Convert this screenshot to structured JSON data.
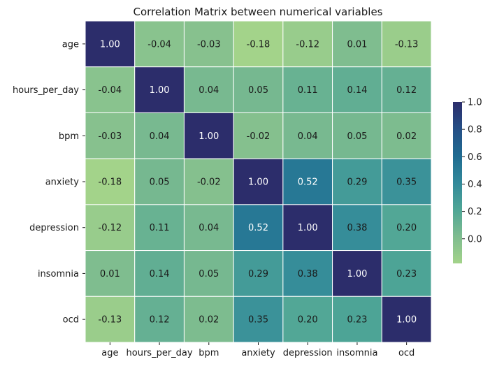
{
  "chart_data": {
    "type": "heatmap",
    "title": "Correlation Matrix between numerical variables",
    "xlabel": "",
    "ylabel": "",
    "row_labels": [
      "age",
      "hours_per_day",
      "bpm",
      "anxiety",
      "depression",
      "insomnia",
      "ocd"
    ],
    "column_labels": [
      "age",
      "hours_per_day",
      "bpm",
      "anxiety",
      "depression",
      "insomnia",
      "ocd"
    ],
    "values": [
      [
        1.0,
        -0.04,
        -0.03,
        -0.18,
        -0.12,
        0.01,
        -0.13
      ],
      [
        -0.04,
        1.0,
        0.04,
        0.05,
        0.11,
        0.14,
        0.12
      ],
      [
        -0.03,
        0.04,
        1.0,
        -0.02,
        0.04,
        0.05,
        0.02
      ],
      [
        -0.18,
        0.05,
        -0.02,
        1.0,
        0.52,
        0.29,
        0.35
      ],
      [
        -0.12,
        0.11,
        0.04,
        0.52,
        1.0,
        0.38,
        0.2
      ],
      [
        0.01,
        0.14,
        0.05,
        0.29,
        0.38,
        1.0,
        0.23
      ],
      [
        -0.13,
        0.12,
        0.02,
        0.35,
        0.2,
        0.23,
        1.0
      ]
    ],
    "cell_labels": [
      [
        "1.00",
        "-0.04",
        "-0.03",
        "-0.18",
        "-0.12",
        "0.01",
        "-0.13"
      ],
      [
        "-0.04",
        "1.00",
        "0.04",
        "0.05",
        "0.11",
        "0.14",
        "0.12"
      ],
      [
        "-0.03",
        "0.04",
        "1.00",
        "-0.02",
        "0.04",
        "0.05",
        "0.02"
      ],
      [
        "-0.18",
        "0.05",
        "-0.02",
        "1.00",
        "0.52",
        "0.29",
        "0.35"
      ],
      [
        "-0.12",
        "0.11",
        "0.04",
        "0.52",
        "1.00",
        "0.38",
        "0.20"
      ],
      [
        "0.01",
        "0.14",
        "0.05",
        "0.29",
        "0.38",
        "1.00",
        "0.23"
      ],
      [
        "-0.13",
        "0.12",
        "0.02",
        "0.35",
        "0.20",
        "0.23",
        "1.00"
      ]
    ],
    "colormap": "crest",
    "colormap_stops": [
      "#a3d38a",
      "#7ebc8f",
      "#4fa696",
      "#32899a",
      "#1f6b91",
      "#254f86",
      "#2c2d6b"
    ],
    "value_range": [
      -0.18,
      1.0
    ],
    "colorbar": {
      "ticks": [
        1.0,
        0.8,
        0.6,
        0.4,
        0.2,
        0.0
      ],
      "tick_labels": [
        "1.0",
        "0.8",
        "0.6",
        "0.4",
        "0.2",
        "0.0"
      ]
    },
    "grid": false,
    "cell_border_color": "#ffffff",
    "light_text_color": "#ffffff",
    "dark_text_color": "#1a1a1a"
  }
}
